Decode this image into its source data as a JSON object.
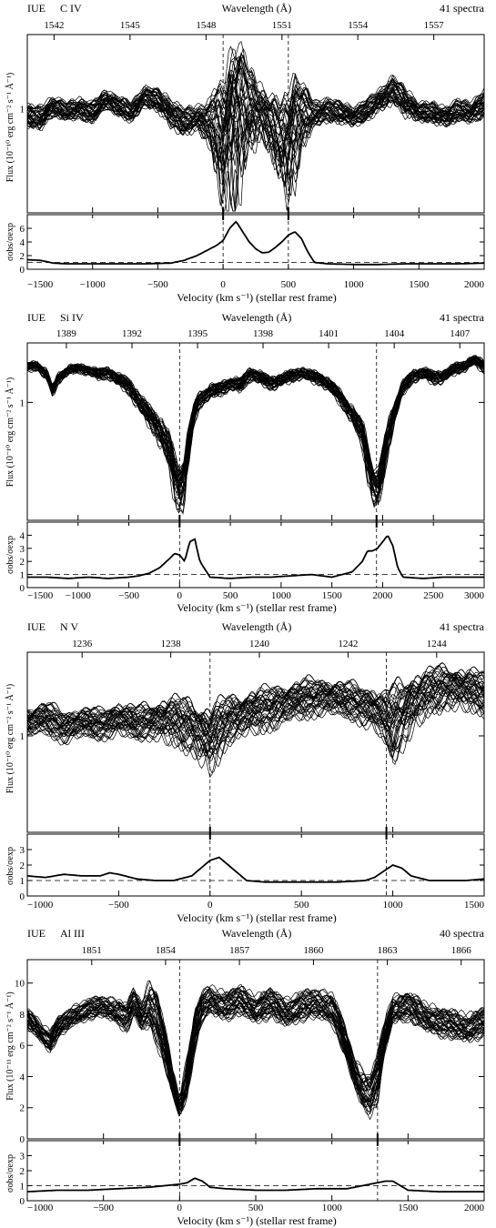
{
  "chart_data": [
    {
      "type": "line",
      "instrument": "IUE",
      "ion": "C IV",
      "spectra_label": "41 spectra",
      "wavelength_label": "Wavelength (Å)",
      "xlabel": "Velocity (km s⁻¹)  (stellar rest frame)",
      "ylabel_flux": "Flux (10⁻¹⁰ erg cm⁻² s⁻¹ Å⁻¹)",
      "ylabel_ratio": "σobs/σexp",
      "xlim": [
        -1500,
        2000
      ],
      "x_ticks": [
        -1500,
        -1000,
        -500,
        0,
        500,
        1000,
        1500,
        2000
      ],
      "x_tick_labels": [
        "−1500",
        "−1000",
        "−500",
        "0",
        "500",
        "1000",
        "1500",
        "2000"
      ],
      "wl_ticks": [
        "1542",
        "1545",
        "1548",
        "1551",
        "1554",
        "1557"
      ],
      "wl_tick_velocities": [
        -1295,
        -713,
        -131,
        451,
        1032,
        1614
      ],
      "flux_log_scale": true,
      "flux_tick_labels": [
        "1"
      ],
      "flux_ticks": [
        1
      ],
      "flux_ylim": [
        0.33,
        2.2
      ],
      "ratio_ylim": [
        0,
        8
      ],
      "ratio_ticks": [
        0,
        2,
        4,
        6
      ],
      "ratio_tick_labels": [
        "0",
        "2",
        "4",
        "6"
      ],
      "ratio_ref_level": 1,
      "line_markers": [
        0,
        500
      ],
      "envelope": {
        "x": [
          -1500,
          -1400,
          -1300,
          -1200,
          -1100,
          -1000,
          -900,
          -800,
          -700,
          -600,
          -500,
          -400,
          -300,
          -200,
          -100,
          -50,
          0,
          50,
          100,
          150,
          200,
          250,
          300,
          350,
          400,
          450,
          500,
          550,
          600,
          700,
          800,
          900,
          1000,
          1100,
          1200,
          1300,
          1400,
          1500,
          1600,
          1700,
          1800,
          1900,
          2000
        ],
        "upper": [
          1.02,
          1.0,
          1.12,
          1.05,
          1.1,
          1.05,
          1.2,
          1.12,
          1.05,
          1.25,
          1.2,
          1.08,
          0.98,
          1.0,
          1.05,
          1.2,
          1.15,
          1.6,
          1.85,
          1.7,
          1.45,
          1.3,
          1.2,
          1.1,
          1.05,
          1.0,
          1.12,
          1.35,
          1.25,
          1.05,
          1.1,
          1.05,
          1.0,
          1.08,
          1.2,
          1.38,
          1.2,
          1.05,
          1.05,
          1.0,
          1.08,
          1.05,
          1.2
        ],
        "lower": [
          0.85,
          0.82,
          0.95,
          0.9,
          0.92,
          0.88,
          1.02,
          0.95,
          0.88,
          1.05,
          1.0,
          0.85,
          0.78,
          0.82,
          0.72,
          0.55,
          0.42,
          0.45,
          0.55,
          0.65,
          0.72,
          0.75,
          0.78,
          0.7,
          0.6,
          0.5,
          0.45,
          0.55,
          0.72,
          0.85,
          0.9,
          0.88,
          0.85,
          0.9,
          1.0,
          1.1,
          0.95,
          0.9,
          0.88,
          0.85,
          0.9,
          0.88,
          0.95
        ]
      },
      "ratio": {
        "x": [
          -1500,
          -1400,
          -1300,
          -1200,
          -1000,
          -800,
          -600,
          -400,
          -300,
          -200,
          -100,
          -50,
          0,
          50,
          100,
          150,
          200,
          250,
          300,
          350,
          400,
          450,
          500,
          550,
          600,
          650,
          700,
          800,
          1000,
          1200,
          1400,
          1600,
          1800,
          2000
        ],
        "values": [
          1.4,
          1.3,
          0.9,
          0.8,
          0.8,
          0.8,
          0.8,
          0.9,
          1.3,
          2.0,
          3.0,
          3.5,
          4.2,
          6.0,
          7.0,
          5.5,
          4.0,
          3.0,
          2.4,
          2.5,
          3.2,
          4.0,
          5.0,
          5.5,
          4.5,
          2.5,
          1.0,
          0.8,
          0.7,
          0.7,
          0.8,
          0.8,
          0.8,
          0.9
        ]
      }
    },
    {
      "type": "line",
      "instrument": "IUE",
      "ion": "Si IV",
      "spectra_label": "41 spectra",
      "wavelength_label": "Wavelength (Å)",
      "xlabel": "Velocity (km s⁻¹)  (stellar rest frame)",
      "ylabel_flux": "Flux (10⁻¹⁰ erg cm⁻² s⁻¹ Å⁻¹)",
      "ylabel_ratio": "σobs/σexp",
      "xlim": [
        -1500,
        3000
      ],
      "x_ticks": [
        -1500,
        -1000,
        -500,
        0,
        500,
        1000,
        1500,
        2000,
        2500,
        3000
      ],
      "x_tick_labels": [
        "−1500",
        "−1000",
        "−500",
        "0",
        "500",
        "1000",
        "1500",
        "2000",
        "2500",
        "3000"
      ],
      "wl_ticks": [
        "1389",
        "1392",
        "1395",
        "1398",
        "1401",
        "1404",
        "1407"
      ],
      "wl_tick_velocities": [
        -1115,
        -469,
        177,
        822,
        1468,
        2114,
        2760
      ],
      "flux_log_scale": true,
      "flux_tick_labels": [
        "1"
      ],
      "flux_ticks": [
        1
      ],
      "flux_ylim": [
        0.28,
        1.9
      ],
      "ratio_ylim": [
        0,
        5
      ],
      "ratio_ticks": [
        0,
        1,
        2,
        3,
        4
      ],
      "ratio_tick_labels": [
        "0",
        "1",
        "2",
        "3",
        "4"
      ],
      "ratio_ref_level": 1,
      "line_markers": [
        0,
        1940
      ],
      "envelope": {
        "x": [
          -1500,
          -1400,
          -1300,
          -1250,
          -1200,
          -1100,
          -1000,
          -900,
          -800,
          -700,
          -600,
          -500,
          -400,
          -300,
          -200,
          -100,
          -50,
          0,
          50,
          100,
          150,
          200,
          300,
          400,
          500,
          600,
          700,
          800,
          900,
          1000,
          1100,
          1200,
          1300,
          1400,
          1500,
          1600,
          1700,
          1800,
          1850,
          1900,
          1950,
          2000,
          2100,
          2200,
          2300,
          2400,
          2500,
          2600,
          2700,
          2800,
          2900,
          3000
        ],
        "upper": [
          1.52,
          1.55,
          1.4,
          1.18,
          1.35,
          1.48,
          1.5,
          1.48,
          1.42,
          1.45,
          1.35,
          1.28,
          1.1,
          0.95,
          0.85,
          0.7,
          0.55,
          0.48,
          0.55,
          0.8,
          1.0,
          1.1,
          1.2,
          1.22,
          1.3,
          1.28,
          1.45,
          1.38,
          1.3,
          1.35,
          1.4,
          1.45,
          1.4,
          1.35,
          1.25,
          1.1,
          0.95,
          0.8,
          0.65,
          0.5,
          0.45,
          0.6,
          0.95,
          1.25,
          1.4,
          1.45,
          1.38,
          1.4,
          1.5,
          1.55,
          1.65,
          1.55
        ],
        "lower": [
          1.4,
          1.42,
          1.25,
          1.05,
          1.22,
          1.35,
          1.38,
          1.35,
          1.28,
          1.3,
          1.2,
          1.1,
          0.92,
          0.78,
          0.65,
          0.48,
          0.36,
          0.31,
          0.35,
          0.55,
          0.82,
          0.95,
          1.05,
          1.08,
          1.15,
          1.12,
          1.28,
          1.22,
          1.15,
          1.2,
          1.25,
          1.3,
          1.25,
          1.2,
          1.1,
          0.95,
          0.8,
          0.62,
          0.45,
          0.35,
          0.32,
          0.4,
          0.75,
          1.08,
          1.25,
          1.3,
          1.22,
          1.25,
          1.35,
          1.4,
          1.5,
          1.38
        ]
      },
      "ratio": {
        "x": [
          -1500,
          -1300,
          -1100,
          -900,
          -700,
          -500,
          -400,
          -300,
          -200,
          -100,
          -50,
          0,
          50,
          100,
          150,
          200,
          300,
          500,
          700,
          900,
          1100,
          1300,
          1500,
          1700,
          1800,
          1850,
          1900,
          1950,
          2000,
          2050,
          2100,
          2150,
          2200,
          2400,
          2600,
          2800,
          3000
        ],
        "values": [
          0.8,
          0.8,
          0.7,
          0.8,
          0.7,
          0.8,
          0.9,
          1.1,
          1.5,
          2.2,
          2.6,
          2.5,
          2.0,
          3.5,
          3.7,
          2.0,
          0.8,
          0.7,
          0.8,
          0.8,
          0.9,
          1.0,
          0.8,
          1.2,
          2.0,
          2.8,
          2.8,
          3.0,
          3.5,
          4.0,
          3.2,
          1.5,
          0.8,
          0.7,
          0.8,
          0.8,
          0.8
        ]
      }
    },
    {
      "type": "line",
      "instrument": "IUE",
      "ion": "N V",
      "spectra_label": "41 spectra",
      "wavelength_label": "Wavelength (Å)",
      "xlabel": "Velocity (km s⁻¹)  (stellar rest frame)",
      "ylabel_flux": "Flux (10⁻¹⁰ erg cm⁻² s⁻¹ Å⁻¹)",
      "ylabel_ratio": "σobs/σexp",
      "xlim": [
        -1000,
        1500
      ],
      "x_ticks": [
        -1000,
        -500,
        0,
        500,
        1000,
        1500
      ],
      "x_tick_labels": [
        "−1000",
        "−500",
        "0",
        "500",
        "1000",
        "1500"
      ],
      "wl_ticks": [
        "1236",
        "1238",
        "1240",
        "1242",
        "1244"
      ],
      "wl_tick_velocities": [
        -700,
        -215,
        270,
        755,
        1240
      ],
      "flux_log_scale": true,
      "flux_tick_labels": [
        "1"
      ],
      "flux_ticks": [
        1
      ],
      "flux_ylim": [
        0.45,
        2.0
      ],
      "ratio_ylim": [
        0,
        4
      ],
      "ratio_ticks": [
        0,
        1,
        2,
        3
      ],
      "ratio_tick_labels": [
        "0",
        "1",
        "2",
        "3"
      ],
      "ratio_ref_level": 1,
      "line_markers": [
        0,
        965
      ],
      "envelope": {
        "x": [
          -1000,
          -900,
          -800,
          -700,
          -600,
          -500,
          -400,
          -300,
          -200,
          -100,
          -50,
          0,
          50,
          100,
          200,
          300,
          400,
          500,
          600,
          700,
          800,
          900,
          950,
          1000,
          1100,
          1200,
          1300,
          1400,
          1500
        ],
        "upper": [
          1.25,
          1.3,
          1.2,
          1.25,
          1.22,
          1.3,
          1.25,
          1.3,
          1.35,
          1.3,
          1.25,
          1.22,
          1.3,
          1.35,
          1.4,
          1.45,
          1.5,
          1.55,
          1.58,
          1.55,
          1.5,
          1.45,
          1.4,
          1.45,
          1.6,
          1.7,
          1.75,
          1.7,
          1.65
        ],
        "lower": [
          1.02,
          1.05,
          0.98,
          1.02,
          1.0,
          1.05,
          1.0,
          1.02,
          0.98,
          0.92,
          0.85,
          0.8,
          0.88,
          1.0,
          1.05,
          1.1,
          1.15,
          1.2,
          1.25,
          1.22,
          1.18,
          1.1,
          1.0,
          0.88,
          1.1,
          1.25,
          1.32,
          1.3,
          1.25
        ]
      },
      "ratio": {
        "x": [
          -1000,
          -900,
          -800,
          -700,
          -600,
          -550,
          -500,
          -400,
          -300,
          -200,
          -100,
          -50,
          0,
          50,
          100,
          150,
          200,
          300,
          500,
          700,
          850,
          900,
          950,
          1000,
          1050,
          1100,
          1200,
          1300,
          1400,
          1500
        ],
        "values": [
          1.3,
          1.2,
          1.4,
          1.3,
          1.3,
          1.5,
          1.4,
          1.1,
          1.0,
          1.0,
          1.3,
          1.8,
          2.3,
          2.5,
          2.0,
          1.5,
          1.0,
          0.9,
          0.9,
          0.9,
          1.0,
          1.2,
          1.6,
          2.0,
          1.8,
          1.3,
          1.0,
          1.0,
          1.0,
          1.1
        ]
      }
    },
    {
      "type": "line",
      "instrument": "IUE",
      "ion": "Al III",
      "spectra_label": "40 spectra",
      "wavelength_label": "Wavelength (Å)",
      "xlabel": "Velocity (km s⁻¹)  (stellar rest frame)",
      "ylabel_flux": "Flux (10⁻¹¹ erg cm⁻² s⁻¹ Å⁻¹)",
      "ylabel_ratio": "σobs/σexp",
      "xlim": [
        -1000,
        2000
      ],
      "x_ticks": [
        -1000,
        -500,
        0,
        500,
        1000,
        1500,
        2000
      ],
      "x_tick_labels": [
        "−1000",
        "−500",
        "0",
        "500",
        "1000",
        "1500",
        "2000"
      ],
      "wl_ticks": [
        "1851",
        "1854",
        "1857",
        "1860",
        "1863",
        "1866"
      ],
      "wl_tick_velocities": [
        -577,
        -92,
        393,
        879,
        1364,
        1849
      ],
      "flux_log_scale": false,
      "flux_tick_labels": [
        "0",
        "2",
        "4",
        "6",
        "8",
        "10"
      ],
      "flux_ticks": [
        0,
        2,
        4,
        6,
        8,
        10
      ],
      "flux_ylim": [
        0,
        11.5
      ],
      "ratio_ylim": [
        0,
        4
      ],
      "ratio_ticks": [
        0,
        1,
        2,
        3
      ],
      "ratio_tick_labels": [
        "0",
        "1",
        "2",
        "3"
      ],
      "ratio_ref_level": 1,
      "line_markers": [
        0,
        1300
      ],
      "envelope": {
        "x": [
          -1000,
          -950,
          -900,
          -850,
          -800,
          -700,
          -600,
          -500,
          -400,
          -350,
          -300,
          -250,
          -200,
          -150,
          -100,
          -50,
          0,
          50,
          100,
          150,
          200,
          300,
          400,
          500,
          600,
          700,
          800,
          900,
          1000,
          1050,
          1100,
          1150,
          1200,
          1250,
          1300,
          1350,
          1400,
          1500,
          1600,
          1700,
          1800,
          1900,
          2000
        ],
        "upper": [
          8.2,
          7.8,
          7.2,
          6.8,
          7.6,
          8.4,
          8.8,
          9.0,
          8.8,
          8.4,
          9.4,
          8.6,
          9.8,
          9.2,
          7.0,
          4.5,
          2.5,
          5.0,
          8.0,
          9.2,
          9.6,
          9.2,
          9.6,
          9.0,
          9.4,
          8.8,
          9.2,
          9.4,
          9.2,
          8.0,
          6.5,
          5.0,
          4.2,
          3.8,
          5.0,
          7.5,
          9.0,
          9.2,
          8.6,
          8.2,
          8.0,
          7.8,
          8.2
        ],
        "lower": [
          7.2,
          6.8,
          6.2,
          5.7,
          6.6,
          7.4,
          7.8,
          8.0,
          7.5,
          7.0,
          8.0,
          7.2,
          7.4,
          6.5,
          5.0,
          3.0,
          1.5,
          2.8,
          6.0,
          7.8,
          8.2,
          7.8,
          8.2,
          7.6,
          8.0,
          7.4,
          7.8,
          8.0,
          7.6,
          6.5,
          5.0,
          3.5,
          2.2,
          1.8,
          2.6,
          5.8,
          7.6,
          7.8,
          7.2,
          6.8,
          6.6,
          6.4,
          6.8
        ]
      },
      "ratio": {
        "x": [
          -1000,
          -800,
          -600,
          -400,
          -200,
          -100,
          0,
          50,
          100,
          150,
          200,
          300,
          500,
          700,
          900,
          1100,
          1200,
          1250,
          1300,
          1350,
          1400,
          1450,
          1500,
          1700,
          1900,
          2000
        ],
        "values": [
          0.6,
          0.7,
          0.7,
          0.8,
          0.9,
          1.0,
          1.1,
          1.2,
          1.5,
          1.3,
          0.9,
          0.8,
          0.7,
          0.7,
          0.8,
          0.8,
          1.0,
          1.1,
          1.2,
          1.3,
          1.3,
          1.0,
          0.7,
          0.6,
          0.6,
          0.6
        ]
      }
    }
  ]
}
